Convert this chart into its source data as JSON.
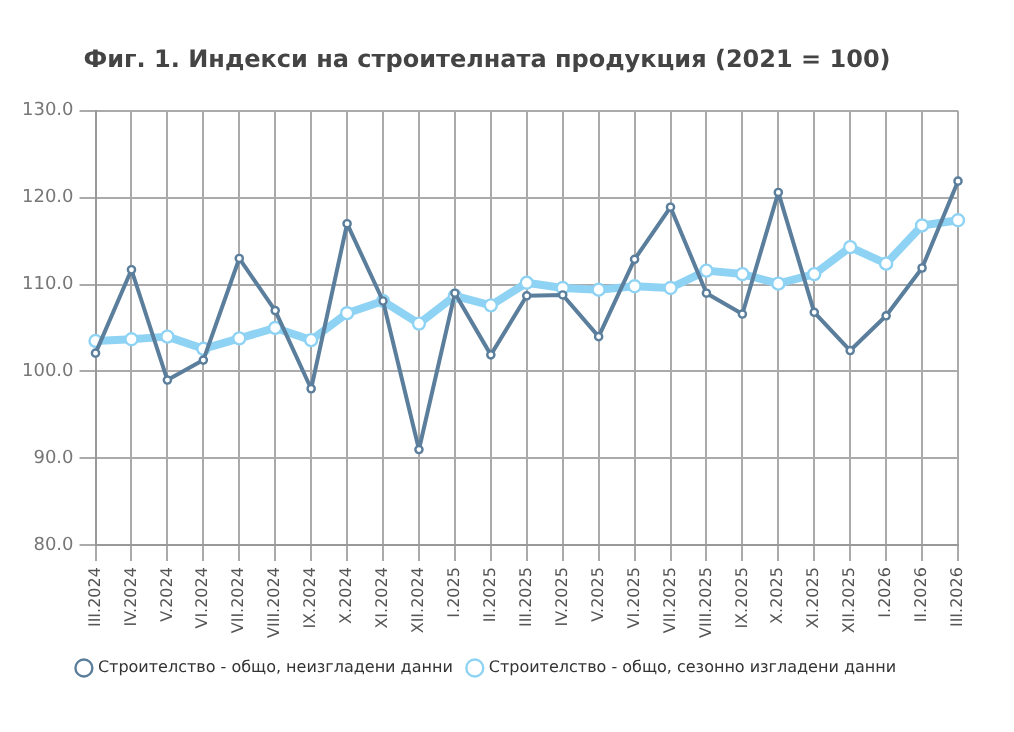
{
  "chart_data": {
    "type": "line",
    "title": "Фиг. 1. Индекси на строителната продукция (2021 = 100)",
    "categories": [
      "III.2024",
      "IV.2024",
      "V.2024",
      "VI.2024",
      "VII.2024",
      "VIII.2024",
      "IX.2024",
      "X.2024",
      "XI.2024",
      "XII.2024",
      "I.2025",
      "II.2025",
      "III.2025",
      "IV.2025",
      "V.2025",
      "VI.2025",
      "VII.2025",
      "VIII.2025",
      "IX.2025",
      "X.2025",
      "XI.2025",
      "XII.2025",
      "I.2026",
      "II.2026",
      "III.2026"
    ],
    "series": [
      {
        "name": "Строителство - общо, неизгладени данни",
        "color": "#5a7e9b",
        "values": [
          102.1,
          111.7,
          99.0,
          101.3,
          113.0,
          107.0,
          98.0,
          117.0,
          108.1,
          91.0,
          109.0,
          101.9,
          108.7,
          108.8,
          104.0,
          112.9,
          118.9,
          109.0,
          106.6,
          120.6,
          106.8,
          102.4,
          106.4,
          111.9,
          121.9
        ]
      },
      {
        "name": "Строителство - общо, сезонно изгладени данни",
        "color": "#8fd3f4",
        "values": [
          103.5,
          103.7,
          104.0,
          102.6,
          103.8,
          105.0,
          103.6,
          106.7,
          108.1,
          105.5,
          108.7,
          107.6,
          110.2,
          109.6,
          109.4,
          109.8,
          109.6,
          111.6,
          111.2,
          110.1,
          111.2,
          114.3,
          112.4,
          116.8,
          117.4
        ]
      }
    ],
    "ylim": [
      80,
      130
    ],
    "yticks": [
      {
        "value": 80,
        "label": "80.0"
      },
      {
        "value": 90,
        "label": "90.0"
      },
      {
        "value": 100,
        "label": "100.0"
      },
      {
        "value": 110,
        "label": "110.0"
      },
      {
        "value": 120,
        "label": "120.0"
      },
      {
        "value": 130,
        "label": "130.0"
      }
    ],
    "grid": true,
    "legend": "bottom",
    "marker": "circle",
    "line_style": "solid"
  }
}
